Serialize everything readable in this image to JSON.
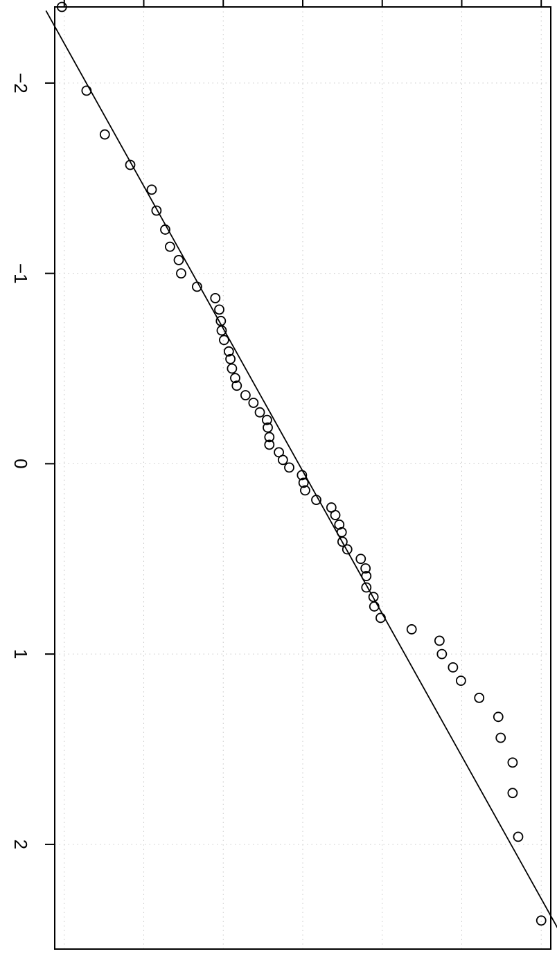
{
  "chart_data": {
    "type": "scatter",
    "orientation": "rotated-90-clockwise",
    "title": "",
    "xlabel": "",
    "ylabel": "",
    "grid": true,
    "x_axis": {
      "range": [
        -2.4,
        2.55
      ],
      "ticks": [
        {
          "value": -2,
          "label": "−2"
        },
        {
          "value": -1,
          "label": "−1"
        },
        {
          "value": 0,
          "label": "0"
        },
        {
          "value": 1,
          "label": "1"
        },
        {
          "value": 2,
          "label": "2"
        }
      ]
    },
    "y_axis": {
      "range": [
        -0.12,
        6.12
      ],
      "ticks": [
        0,
        1,
        2,
        3,
        4,
        5,
        6
      ],
      "tick_labels_visible": false
    },
    "reference_line": {
      "points": [
        {
          "x": -2.38,
          "y": -0.23
        },
        {
          "x": 2.48,
          "y": 6.26
        }
      ]
    },
    "series": [
      {
        "points": [
          {
            "x": -2.4,
            "y": -0.03
          },
          {
            "x": -1.96,
            "y": 0.28
          },
          {
            "x": -1.73,
            "y": 0.51
          },
          {
            "x": -1.57,
            "y": 0.83
          },
          {
            "x": -1.44,
            "y": 1.1
          },
          {
            "x": -1.33,
            "y": 1.16
          },
          {
            "x": -1.23,
            "y": 1.27
          },
          {
            "x": -1.14,
            "y": 1.33
          },
          {
            "x": -1.07,
            "y": 1.44
          },
          {
            "x": -1.0,
            "y": 1.47
          },
          {
            "x": -0.93,
            "y": 1.67
          },
          {
            "x": -0.87,
            "y": 1.9
          },
          {
            "x": -0.81,
            "y": 1.95
          },
          {
            "x": -0.75,
            "y": 1.97
          },
          {
            "x": -0.7,
            "y": 1.98
          },
          {
            "x": -0.65,
            "y": 2.01
          },
          {
            "x": -0.59,
            "y": 2.07
          },
          {
            "x": -0.55,
            "y": 2.09
          },
          {
            "x": -0.5,
            "y": 2.11
          },
          {
            "x": -0.45,
            "y": 2.15
          },
          {
            "x": -0.41,
            "y": 2.17
          },
          {
            "x": -0.36,
            "y": 2.28
          },
          {
            "x": -0.32,
            "y": 2.38
          },
          {
            "x": -0.27,
            "y": 2.46
          },
          {
            "x": -0.23,
            "y": 2.55
          },
          {
            "x": -0.19,
            "y": 2.56
          },
          {
            "x": -0.14,
            "y": 2.58
          },
          {
            "x": -0.1,
            "y": 2.58
          },
          {
            "x": -0.06,
            "y": 2.7
          },
          {
            "x": -0.02,
            "y": 2.75
          },
          {
            "x": 0.02,
            "y": 2.83
          },
          {
            "x": 0.06,
            "y": 2.99
          },
          {
            "x": 0.1,
            "y": 3.01
          },
          {
            "x": 0.14,
            "y": 3.03
          },
          {
            "x": 0.19,
            "y": 3.17
          },
          {
            "x": 0.23,
            "y": 3.36
          },
          {
            "x": 0.27,
            "y": 3.41
          },
          {
            "x": 0.32,
            "y": 3.46
          },
          {
            "x": 0.36,
            "y": 3.49
          },
          {
            "x": 0.41,
            "y": 3.5
          },
          {
            "x": 0.45,
            "y": 3.56
          },
          {
            "x": 0.5,
            "y": 3.73
          },
          {
            "x": 0.55,
            "y": 3.79
          },
          {
            "x": 0.59,
            "y": 3.8
          },
          {
            "x": 0.65,
            "y": 3.8
          },
          {
            "x": 0.7,
            "y": 3.89
          },
          {
            "x": 0.75,
            "y": 3.9
          },
          {
            "x": 0.81,
            "y": 3.98
          },
          {
            "x": 0.87,
            "y": 4.37
          },
          {
            "x": 0.93,
            "y": 4.72
          },
          {
            "x": 1.0,
            "y": 4.75
          },
          {
            "x": 1.07,
            "y": 4.89
          },
          {
            "x": 1.14,
            "y": 4.99
          },
          {
            "x": 1.23,
            "y": 5.22
          },
          {
            "x": 1.33,
            "y": 5.46
          },
          {
            "x": 1.44,
            "y": 5.49
          },
          {
            "x": 1.57,
            "y": 5.64
          },
          {
            "x": 1.73,
            "y": 5.64
          },
          {
            "x": 1.96,
            "y": 5.71
          },
          {
            "x": 2.4,
            "y": 6.0
          }
        ]
      }
    ]
  }
}
